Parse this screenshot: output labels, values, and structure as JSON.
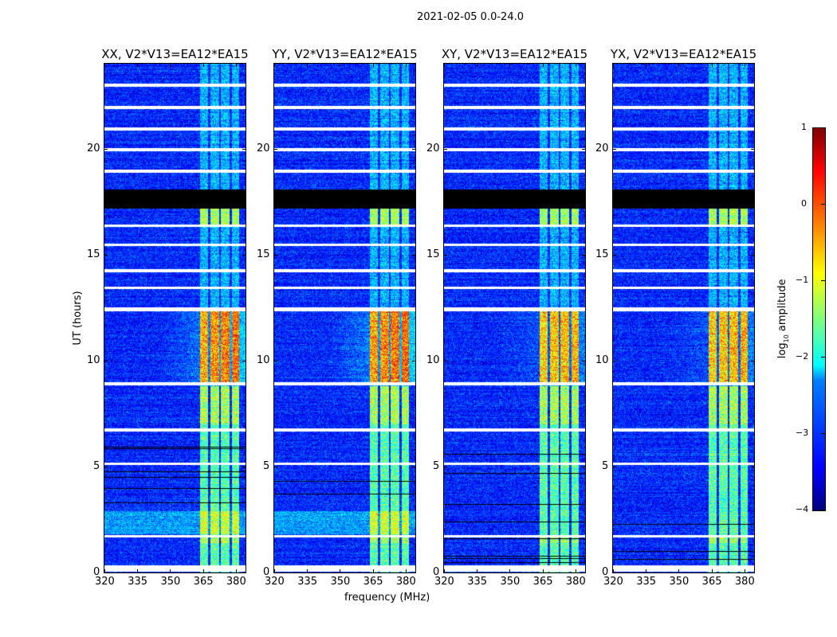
{
  "chart_data": {
    "type": "heatmap",
    "title": "2021-02-05 0.0-24.0",
    "xlabel": "frequency (MHz)",
    "ylabel": "UT (hours)",
    "xlim": [
      320,
      384.4
    ],
    "ylim": [
      0,
      24
    ],
    "xticks": [
      "320",
      "335",
      "350",
      "365",
      "380"
    ],
    "xtick_values": [
      320,
      335,
      350,
      365,
      380
    ],
    "yticks": [
      "0",
      "5",
      "10",
      "15",
      "20"
    ],
    "ytick_values": [
      0,
      5,
      10,
      15,
      20
    ],
    "panels": [
      {
        "title": "XX, V2*V13=EA12*EA15"
      },
      {
        "title": "YY, V2*V13=EA12*EA15"
      },
      {
        "title": "XY, V2*V13=EA12*EA15"
      },
      {
        "title": "YX, V2*V13=EA12*EA15"
      }
    ],
    "colorbar": {
      "label_main": "log",
      "label_sub": "10",
      "label_rest": " amplitude",
      "range": [
        -4,
        1
      ],
      "ticks": [
        "1",
        "0",
        "−1",
        "−2",
        "−3",
        "−4"
      ],
      "tick_values": [
        1,
        0,
        -1,
        -2,
        -3,
        -4
      ],
      "colormap": "jet"
    },
    "background_log_amplitude": -3.2,
    "rfi_channel_blocks_mhz": [
      [
        363.5,
        367.3
      ],
      [
        368.3,
        372.3
      ],
      [
        373.2,
        377.2
      ],
      [
        378.2,
        381.5
      ]
    ],
    "rfi_strong_hours": [
      [
        8.9,
        12.4
      ],
      [
        1.4,
        1.75
      ],
      [
        7.0,
        8.8
      ]
    ],
    "flagged_hours": [
      [
        22.9,
        23.05
      ],
      [
        21.85,
        22.0
      ],
      [
        20.85,
        21.0
      ],
      [
        19.85,
        20.0
      ],
      [
        18.85,
        19.0
      ],
      [
        16.3,
        16.42
      ],
      [
        15.4,
        15.52
      ],
      [
        14.15,
        14.3
      ],
      [
        13.37,
        13.5
      ],
      [
        12.33,
        12.5
      ],
      [
        8.83,
        8.97
      ],
      [
        6.65,
        6.78
      ],
      [
        5.08,
        5.2
      ],
      [
        1.67,
        1.78
      ],
      [
        0.05,
        0.35
      ]
    ],
    "no_data_hours": [
      [
        17.16,
        18.06
      ]
    ]
  }
}
